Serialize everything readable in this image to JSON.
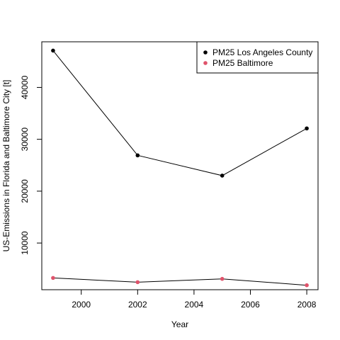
{
  "chart_data": {
    "type": "line",
    "title": "",
    "xlabel": "Year",
    "ylabel": "US-Emissions in Florida and Baltimore City [t]",
    "xlim": [
      1998.6,
      2008.4
    ],
    "ylim": [
      1000,
      48800
    ],
    "xticks": [
      2000,
      2002,
      2004,
      2006,
      2008
    ],
    "yticks": [
      10000,
      20000,
      30000,
      40000
    ],
    "x": [
      1999,
      2002,
      2005,
      2008
    ],
    "series": [
      {
        "name": "PM25 Los Angeles County",
        "values": [
          47100,
          26900,
          23000,
          32100
        ],
        "color": "#000000"
      },
      {
        "name": "PM25 Baltimore",
        "values": [
          3270,
          2450,
          3090,
          1860
        ],
        "color": "#DF536B"
      }
    ],
    "grid": false,
    "legend": "top-right"
  }
}
